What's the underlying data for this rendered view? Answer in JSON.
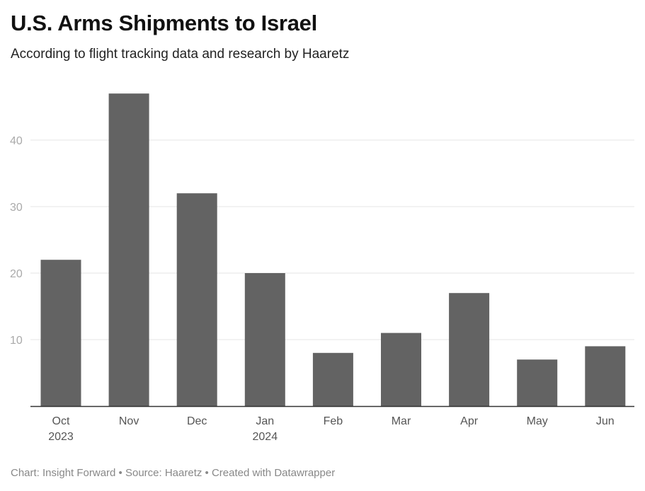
{
  "header": {
    "title": "U.S. Arms Shipments to Israel",
    "subtitle": "According to flight tracking data and research by Haaretz"
  },
  "footer": {
    "credit": "Chart: Insight Forward • Source: Haaretz • Created with Datawrapper"
  },
  "colors": {
    "bar": "#636363",
    "grid": "#e5e5e5",
    "baseline": "#333333"
  },
  "chart_data": {
    "type": "bar",
    "categories": [
      "Oct",
      "Nov",
      "Dec",
      "Jan",
      "Feb",
      "Mar",
      "Apr",
      "May",
      "Jun"
    ],
    "year_labels": [
      "2023",
      "",
      "",
      "2024",
      "",
      "",
      "",
      "",
      ""
    ],
    "values": [
      22,
      47,
      32,
      20,
      8,
      11,
      17,
      7,
      9
    ],
    "yticks": [
      10,
      20,
      30,
      40
    ],
    "ylim": [
      0,
      47
    ],
    "grid": true,
    "title": "U.S. Arms Shipments to Israel",
    "xlabel": "",
    "ylabel": ""
  }
}
